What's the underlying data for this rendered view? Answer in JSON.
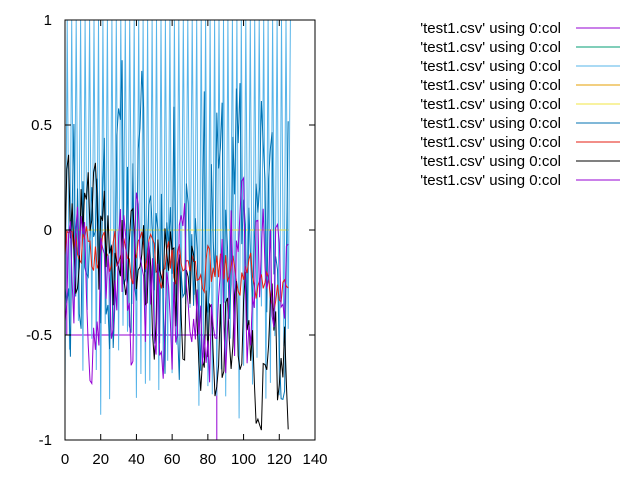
{
  "chart_data": {
    "type": "line",
    "title": "",
    "xlabel": "",
    "ylabel": "",
    "xlim": [
      0,
      140
    ],
    "ylim": [
      -1,
      1
    ],
    "xticks": [
      0,
      20,
      40,
      60,
      80,
      100,
      120,
      140
    ],
    "yticks": [
      -1,
      -0.5,
      0,
      0.5,
      1
    ],
    "xtick_labels": [
      "0",
      "20",
      "40",
      "60",
      "80",
      "100",
      "120",
      "140"
    ],
    "ytick_labels": [
      "-1",
      "-0.5",
      "0",
      "0.5",
      "1"
    ],
    "grid": false,
    "legend_position": "top-right outside",
    "series": [
      {
        "name": "'test1.csv' using 0:col",
        "color": "#9400d3",
        "kind": "step",
        "points": [
          [
            0,
            -1
          ],
          [
            0,
            0
          ],
          [
            1,
            0
          ],
          [
            1,
            -0.5
          ],
          [
            45,
            -0.5
          ],
          [
            45,
            -0.5
          ],
          [
            85,
            -0.5
          ],
          [
            85,
            -1
          ],
          [
            125,
            -1
          ]
        ]
      },
      {
        "name": "'test1.csv' using 0:col",
        "color": "#009e73",
        "kind": "zero",
        "x_range": [
          0,
          125
        ],
        "value": 0
      },
      {
        "name": "'test1.csv' using 0:col",
        "color": "#56b4e9",
        "kind": "comb",
        "x_range": [
          0,
          125
        ],
        "period": 2.5,
        "phase": 0,
        "low": -0.9,
        "high": 1.0,
        "seed": 3
      },
      {
        "name": "'test1.csv' using 0:col",
        "color": "#e69f00",
        "kind": "zero",
        "x_range": [
          0,
          125
        ],
        "value": 0
      },
      {
        "name": "'test1.csv' using 0:col",
        "color": "#f0e442",
        "kind": "zero",
        "x_range": [
          0,
          125
        ],
        "value": 0
      },
      {
        "name": "'test1.csv' using 0:col",
        "color": "#0072b2",
        "kind": "noise",
        "x_range": [
          0,
          125
        ],
        "step": 1,
        "mean": 0.05,
        "amp": 0.75,
        "seed": 11
      },
      {
        "name": "'test1.csv' using 0:col",
        "color": "#e51e10",
        "kind": "noise",
        "x_range": [
          0,
          125
        ],
        "step": 1,
        "mean": -0.07,
        "amp": 0.12,
        "drift": -0.0015,
        "seed": 29
      },
      {
        "name": "'test1.csv' using 0:col",
        "color": "#000000",
        "kind": "noise",
        "x_range": [
          0,
          125
        ],
        "step": 1,
        "mean": 0.05,
        "amp": 0.35,
        "drift": -0.006,
        "seed": 41
      },
      {
        "name": "'test1.csv' using 0:col",
        "color": "#9400d3",
        "kind": "noise",
        "x_range": [
          0,
          125
        ],
        "step": 1,
        "mean": -0.25,
        "amp": 0.45,
        "seed": 57
      }
    ]
  }
}
